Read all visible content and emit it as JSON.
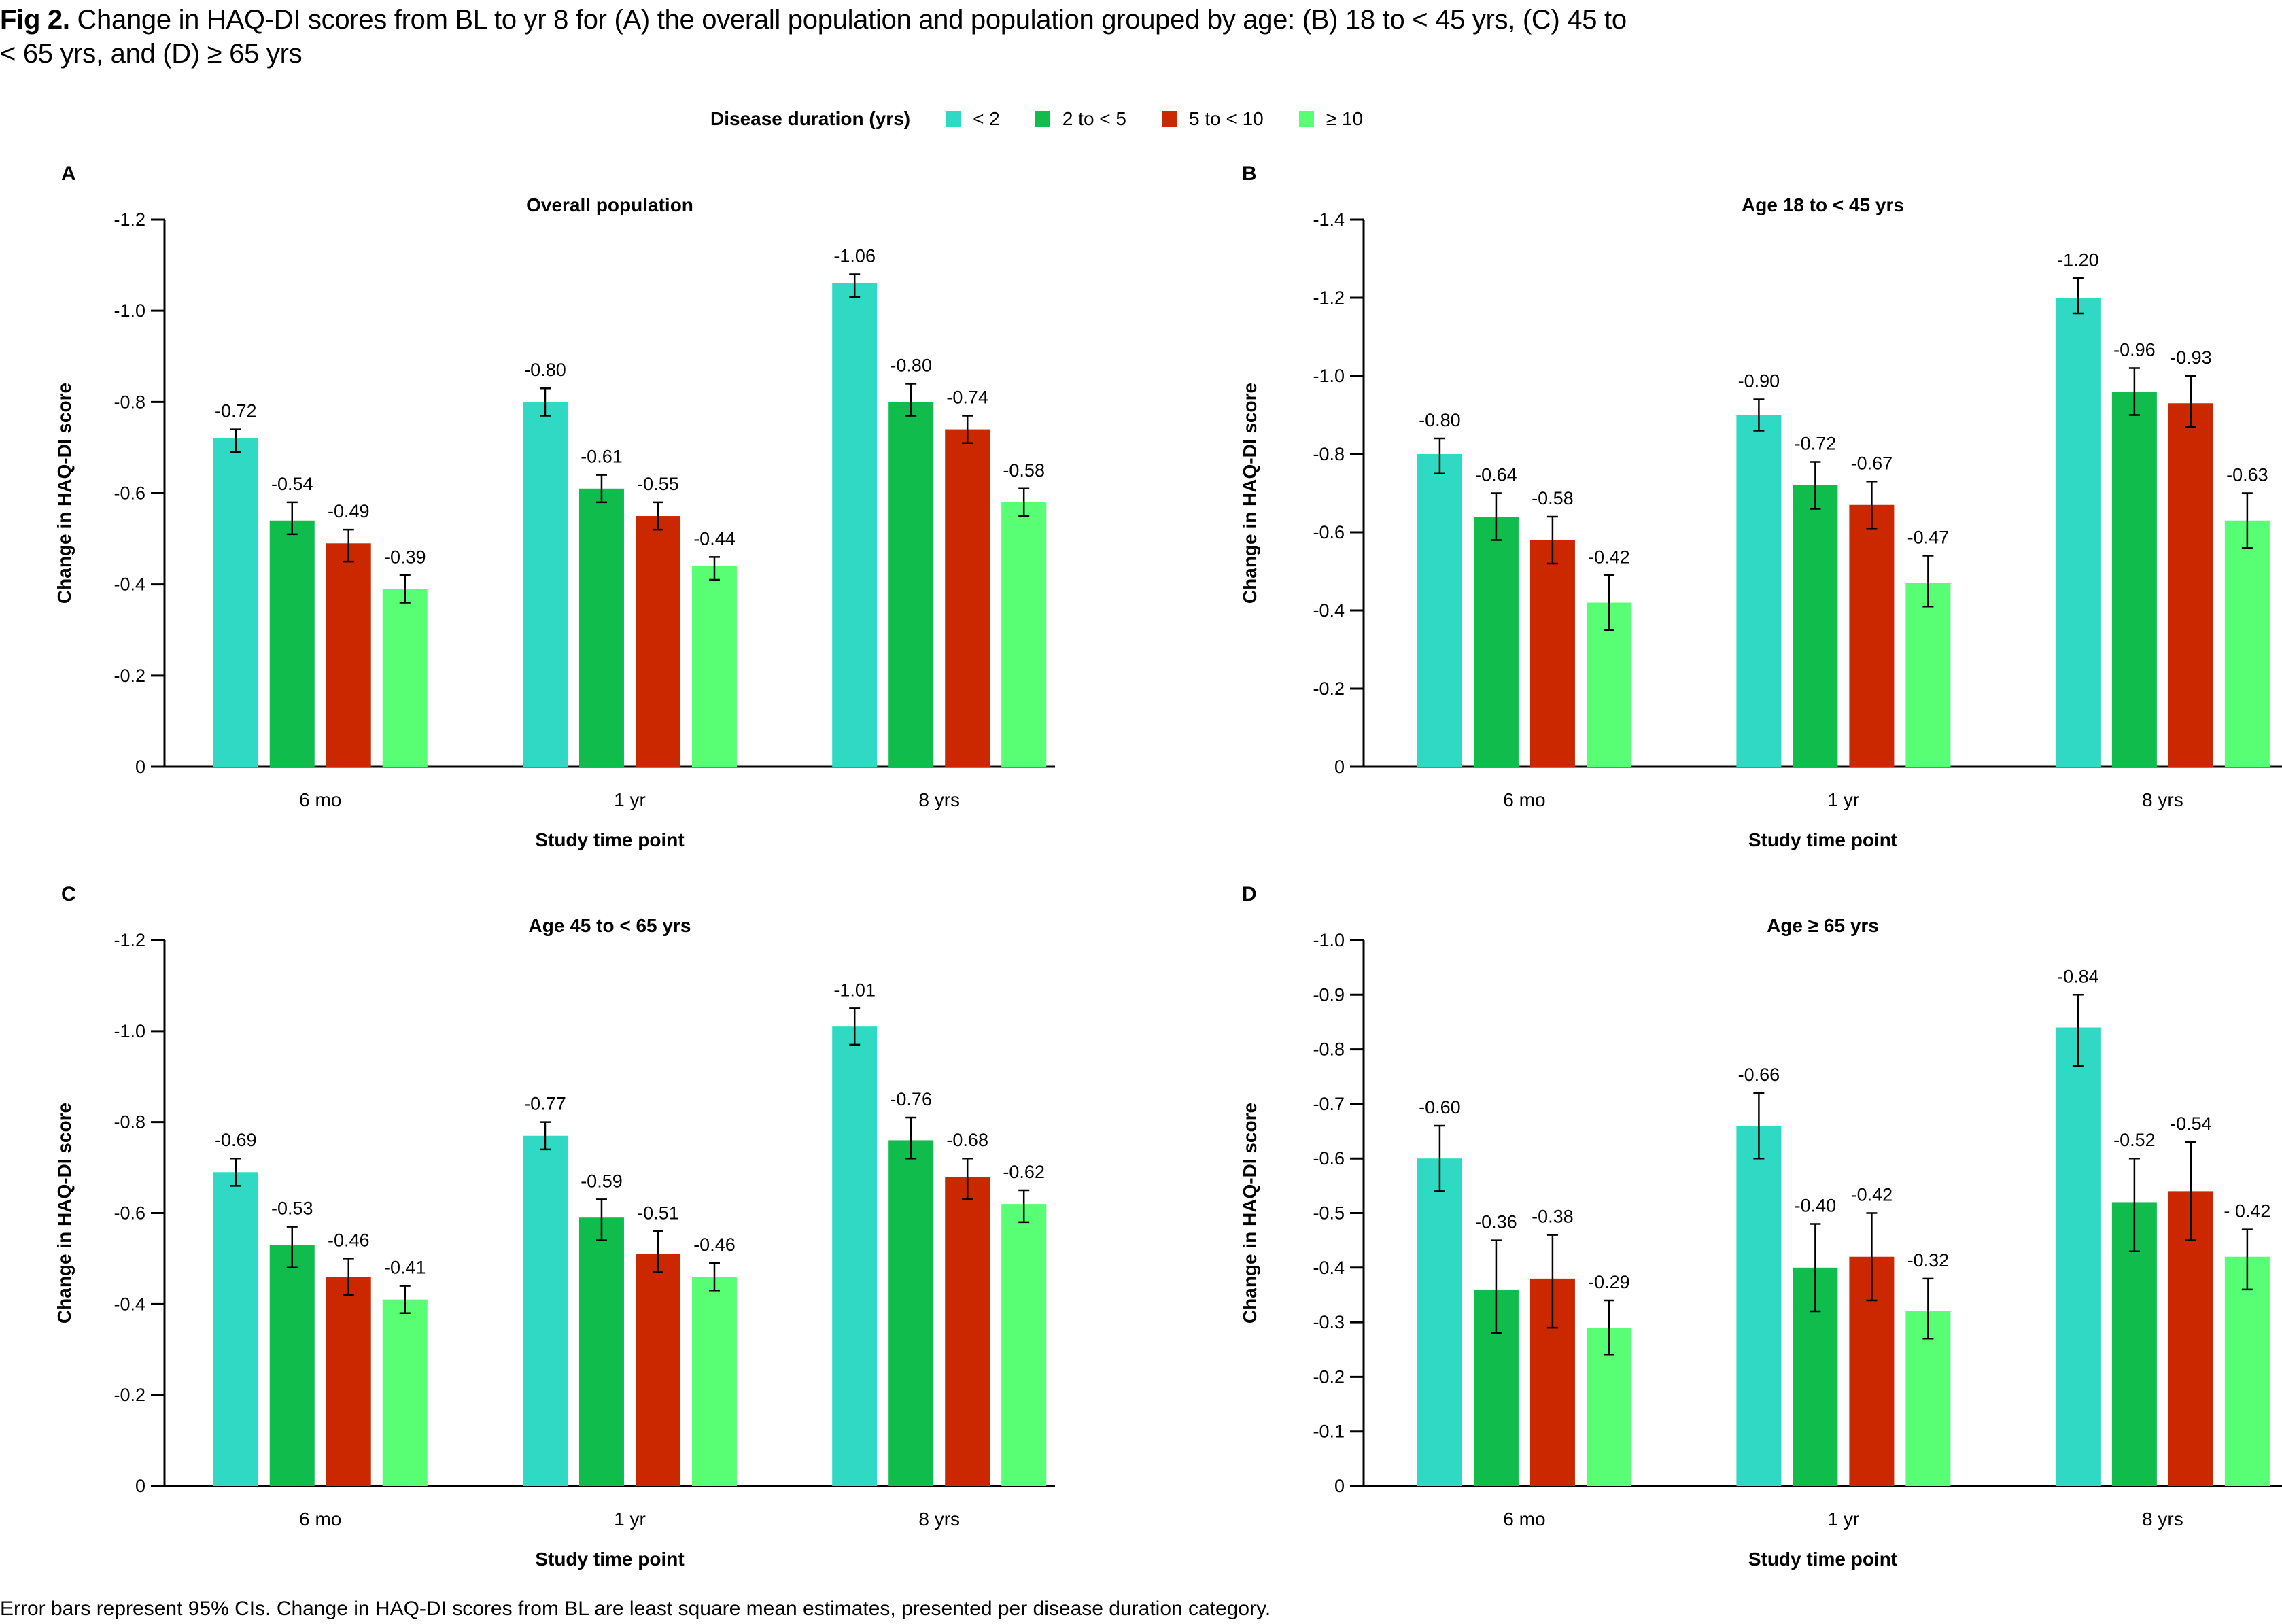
{
  "figure": {
    "title_bold": "Fig 2.",
    "title_text": " Change in HAQ-DI scores from BL to yr 8 for (A) the overall population and population grouped by age: (B) 18 to < 45 yrs, (C) 45 to < 65 yrs, and (D) ≥ 65 yrs",
    "footnote": "Error bars represent 95% CIs. Change in HAQ-DI scores from BL are least square mean estimates, presented per disease duration category."
  },
  "legend": {
    "title": "Disease duration (yrs)",
    "items": [
      {
        "label": "< 2",
        "color": "#30d9c3"
      },
      {
        "label": "2 to < 5",
        "color": "#10bd4c"
      },
      {
        "label": "5 to < 10",
        "color": "#cc2800"
      },
      {
        "label": "≥ 10",
        "color": "#58ff74"
      }
    ]
  },
  "chart_data": [
    {
      "panel": "A",
      "type": "bar",
      "title": "Overall population",
      "xlabel": "Study time point",
      "ylabel": "Change in HAQ-DI score",
      "categories": [
        "6 mo",
        "1 yr",
        "8 yrs"
      ],
      "ylim": [
        0,
        -1.2
      ],
      "yticks": [
        0,
        -0.2,
        -0.4,
        -0.6,
        -0.8,
        -1.0,
        -1.2
      ],
      "ytick_labels": [
        "0",
        "-0.2",
        "-0.4",
        "-0.6",
        "-0.8",
        "-1.0",
        "-1.2"
      ],
      "series": [
        {
          "name": "< 2",
          "values": [
            -0.72,
            -0.8,
            -1.06
          ],
          "labels": [
            "-0.72",
            "-0.80",
            "-1.06"
          ],
          "ci": [
            [
              -0.69,
              -0.74
            ],
            [
              -0.77,
              -0.83
            ],
            [
              -1.03,
              -1.08
            ]
          ]
        },
        {
          "name": "2 to < 5",
          "values": [
            -0.54,
            -0.61,
            -0.8
          ],
          "labels": [
            "-0.54",
            "-0.61",
            "-0.80"
          ],
          "ci": [
            [
              -0.51,
              -0.58
            ],
            [
              -0.58,
              -0.64
            ],
            [
              -0.77,
              -0.84
            ]
          ]
        },
        {
          "name": "5 to < 10",
          "values": [
            -0.49,
            -0.55,
            -0.74
          ],
          "labels": [
            "-0.49",
            "-0.55",
            "-0.74"
          ],
          "ci": [
            [
              -0.45,
              -0.52
            ],
            [
              -0.52,
              -0.58
            ],
            [
              -0.71,
              -0.77
            ]
          ]
        },
        {
          "name": "≥ 10",
          "values": [
            -0.39,
            -0.44,
            -0.58
          ],
          "labels": [
            "-0.39",
            "-0.44",
            "-0.58"
          ],
          "ci": [
            [
              -0.36,
              -0.42
            ],
            [
              -0.41,
              -0.46
            ],
            [
              -0.55,
              -0.61
            ]
          ]
        }
      ]
    },
    {
      "panel": "B",
      "type": "bar",
      "title": "Age 18 to < 45 yrs",
      "xlabel": "Study time point",
      "ylabel": "Change in HAQ-DI score",
      "categories": [
        "6 mo",
        "1 yr",
        "8 yrs"
      ],
      "ylim": [
        0,
        -1.4
      ],
      "yticks": [
        0,
        -0.2,
        -0.4,
        -0.6,
        -0.8,
        -1.0,
        -1.2,
        -1.4
      ],
      "ytick_labels": [
        "0",
        "-0.2",
        "-0.4",
        "-0.6",
        "-0.8",
        "-1.0",
        "-1.2",
        "-1.4"
      ],
      "series": [
        {
          "name": "< 2",
          "values": [
            -0.8,
            -0.9,
            -1.2
          ],
          "labels": [
            "-0.80",
            "-0.90",
            "-1.20"
          ],
          "ci": [
            [
              -0.75,
              -0.84
            ],
            [
              -0.86,
              -0.94
            ],
            [
              -1.16,
              -1.25
            ]
          ]
        },
        {
          "name": "2 to < 5",
          "values": [
            -0.64,
            -0.72,
            -0.96
          ],
          "labels": [
            "-0.64",
            "-0.72",
            "-0.96"
          ],
          "ci": [
            [
              -0.58,
              -0.7
            ],
            [
              -0.66,
              -0.78
            ],
            [
              -0.9,
              -1.02
            ]
          ]
        },
        {
          "name": "5 to < 10",
          "values": [
            -0.58,
            -0.67,
            -0.93
          ],
          "labels": [
            "-0.58",
            "-0.67",
            "-0.93"
          ],
          "ci": [
            [
              -0.52,
              -0.64
            ],
            [
              -0.61,
              -0.73
            ],
            [
              -0.87,
              -1.0
            ]
          ]
        },
        {
          "name": "≥ 10",
          "values": [
            -0.42,
            -0.47,
            -0.63
          ],
          "labels": [
            "-0.42",
            "-0.47",
            "-0.63"
          ],
          "ci": [
            [
              -0.35,
              -0.49
            ],
            [
              -0.41,
              -0.54
            ],
            [
              -0.56,
              -0.7
            ]
          ]
        }
      ]
    },
    {
      "panel": "C",
      "type": "bar",
      "title": "Age 45 to < 65 yrs",
      "xlabel": "Study time point",
      "ylabel": "Change in HAQ-DI score",
      "categories": [
        "6 mo",
        "1 yr",
        "8 yrs"
      ],
      "ylim": [
        0,
        -1.2
      ],
      "yticks": [
        0,
        -0.2,
        -0.4,
        -0.6,
        -0.8,
        -1.0,
        -1.2
      ],
      "ytick_labels": [
        "0",
        "-0.2",
        "-0.4",
        "-0.6",
        "-0.8",
        "-1.0",
        "-1.2"
      ],
      "series": [
        {
          "name": "< 2",
          "values": [
            -0.69,
            -0.77,
            -1.01
          ],
          "labels": [
            "-0.69",
            "-0.77",
            "-1.01"
          ],
          "ci": [
            [
              -0.66,
              -0.72
            ],
            [
              -0.74,
              -0.8
            ],
            [
              -0.97,
              -1.05
            ]
          ]
        },
        {
          "name": "2 to < 5",
          "values": [
            -0.53,
            -0.59,
            -0.76
          ],
          "labels": [
            "-0.53",
            "-0.59",
            "-0.76"
          ],
          "ci": [
            [
              -0.48,
              -0.57
            ],
            [
              -0.54,
              -0.63
            ],
            [
              -0.72,
              -0.81
            ]
          ]
        },
        {
          "name": "5 to < 10",
          "values": [
            -0.46,
            -0.51,
            -0.68
          ],
          "labels": [
            "-0.46",
            "-0.51",
            "-0.68"
          ],
          "ci": [
            [
              -0.42,
              -0.5
            ],
            [
              -0.47,
              -0.56
            ],
            [
              -0.63,
              -0.72
            ]
          ]
        },
        {
          "name": "≥ 10",
          "values": [
            -0.41,
            -0.46,
            -0.62
          ],
          "labels": [
            "-0.41",
            "-0.46",
            "-0.62"
          ],
          "ci": [
            [
              -0.38,
              -0.44
            ],
            [
              -0.43,
              -0.49
            ],
            [
              -0.58,
              -0.65
            ]
          ]
        }
      ]
    },
    {
      "panel": "D",
      "type": "bar",
      "title": "Age ≥ 65 yrs",
      "xlabel": "Study time point",
      "ylabel": "Change in HAQ-DI score",
      "categories": [
        "6 mo",
        "1 yr",
        "8 yrs"
      ],
      "ylim": [
        0,
        -1.0
      ],
      "yticks": [
        0,
        -0.1,
        -0.2,
        -0.3,
        -0.4,
        -0.5,
        -0.6,
        -0.7,
        -0.8,
        -0.9,
        -1.0
      ],
      "ytick_labels": [
        "0",
        "-0.1",
        "-0.2",
        "-0.3",
        "-0.4",
        "-0.5",
        "-0.6",
        "-0.7",
        "-0.8",
        "-0.9",
        "-1.0"
      ],
      "series": [
        {
          "name": "< 2",
          "values": [
            -0.6,
            -0.66,
            -0.84
          ],
          "labels": [
            "-0.60",
            "-0.66",
            "-0.84"
          ],
          "ci": [
            [
              -0.54,
              -0.66
            ],
            [
              -0.6,
              -0.72
            ],
            [
              -0.77,
              -0.9
            ]
          ]
        },
        {
          "name": "2 to < 5",
          "values": [
            -0.36,
            -0.4,
            -0.52
          ],
          "labels": [
            "-0.36",
            "-0.40",
            "-0.52"
          ],
          "ci": [
            [
              -0.28,
              -0.45
            ],
            [
              -0.32,
              -0.48
            ],
            [
              -0.43,
              -0.6
            ]
          ]
        },
        {
          "name": "5 to < 10",
          "values": [
            -0.38,
            -0.42,
            -0.54
          ],
          "labels": [
            "-0.38",
            "-0.42",
            "-0.54"
          ],
          "ci": [
            [
              -0.29,
              -0.46
            ],
            [
              -0.34,
              -0.5
            ],
            [
              -0.45,
              -0.63
            ]
          ]
        },
        {
          "name": "≥ 10",
          "values": [
            -0.29,
            -0.32,
            -0.42
          ],
          "labels": [
            "-0.29",
            "-0.32",
            "- 0.42"
          ],
          "ci": [
            [
              -0.24,
              -0.34
            ],
            [
              -0.27,
              -0.38
            ],
            [
              -0.36,
              -0.47
            ]
          ]
        }
      ]
    }
  ]
}
